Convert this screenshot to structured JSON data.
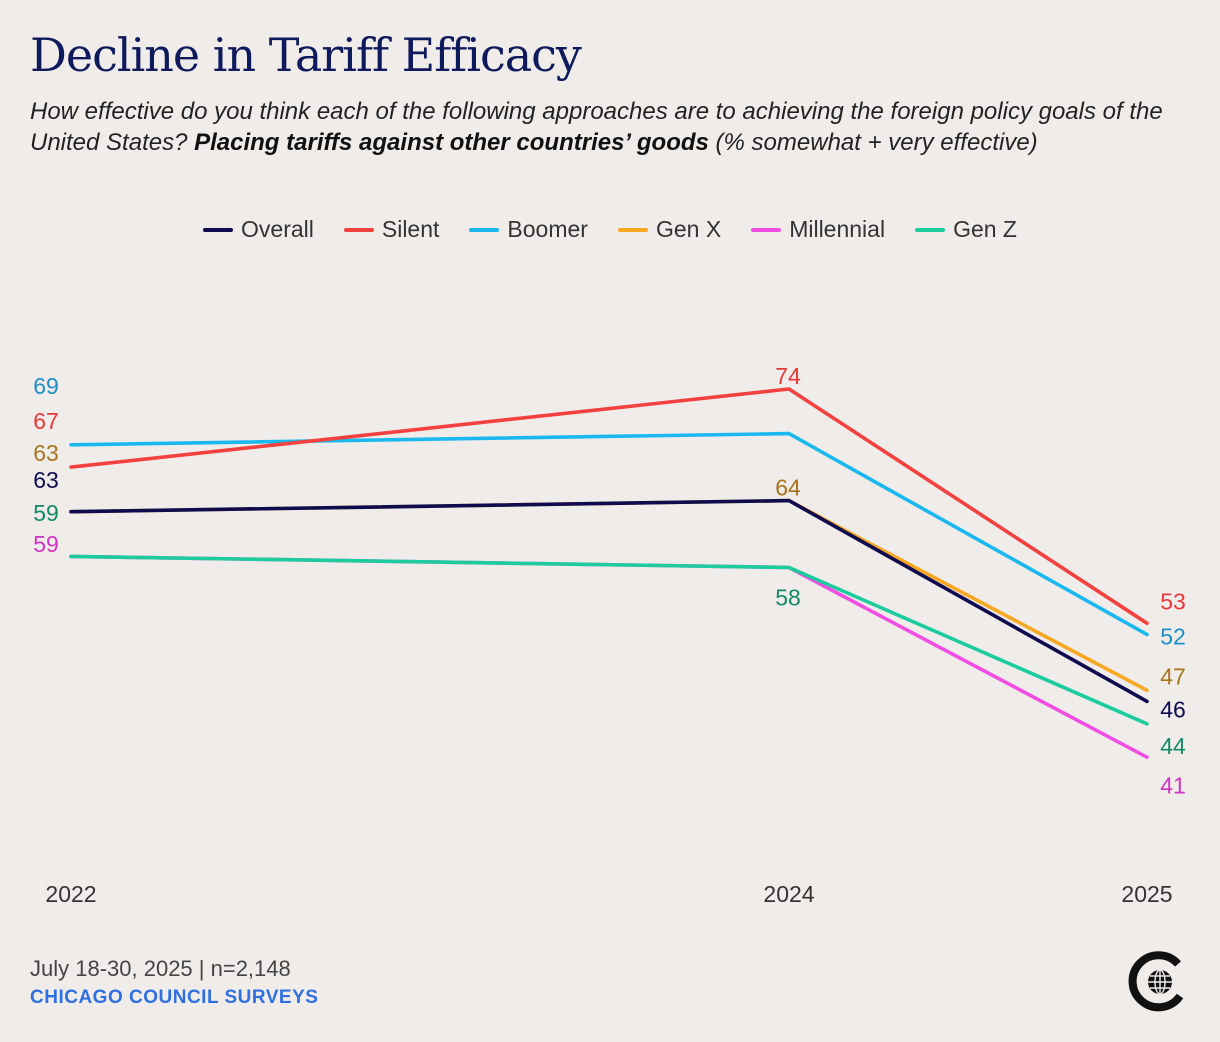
{
  "chart_data": {
    "type": "line",
    "title": "Decline in Tariff Efficacy",
    "subtitle_pre": "How effective do you think each of the following approaches are to achieving the foreign policy goals of the United States? ",
    "subtitle_bold": "Placing tariffs against other countries’ goods",
    "subtitle_post": " (% somewhat + very effective)",
    "x": [
      "2022",
      "2024",
      "2025"
    ],
    "xlabel": "",
    "ylabel": "",
    "ylim": [
      30,
      80
    ],
    "grid": false,
    "legend_position": "top-center",
    "series": [
      {
        "name": "Silent",
        "values": [
          67,
          74,
          53
        ],
        "color": "#f2413f",
        "label_color": "#e8383a"
      },
      {
        "name": "Boomer",
        "values": [
          69,
          70,
          52
        ],
        "color": "#1ab8ee",
        "label_color": "#1c8fc4"
      },
      {
        "name": "Gen X",
        "values": [
          63,
          64,
          47
        ],
        "color": "#f7a823",
        "label_color": "#a6751c"
      },
      {
        "name": "Overall",
        "values": [
          63,
          64,
          46
        ],
        "color": "#0e0c4f",
        "label_color": "#0e0c4f"
      },
      {
        "name": "Gen Z",
        "values": [
          59,
          58,
          44
        ],
        "color": "#1ccc9e",
        "label_color": "#128a68"
      },
      {
        "name": "Millennial",
        "values": [
          59,
          58,
          41
        ],
        "color": "#f04ee3",
        "label_color": "#d333c4"
      }
    ],
    "legend_order": [
      "Overall",
      "Silent",
      "Boomer",
      "Gen X",
      "Millennial",
      "Gen Z"
    ],
    "data_labels": [
      {
        "series": "Boomer",
        "point": 0,
        "text": "69"
      },
      {
        "series": "Silent",
        "point": 0,
        "text": "67"
      },
      {
        "series": "Gen X",
        "point": 0,
        "text": "63"
      },
      {
        "series": "Overall",
        "point": 0,
        "text": "63"
      },
      {
        "series": "Gen Z",
        "point": 0,
        "text": "59"
      },
      {
        "series": "Millennial",
        "point": 0,
        "text": "59"
      },
      {
        "series": "Silent",
        "point": 1,
        "text": "74"
      },
      {
        "series": "Gen X",
        "point": 1,
        "text": "64"
      },
      {
        "series": "Gen Z",
        "point": 1,
        "text": "58"
      },
      {
        "series": "Silent",
        "point": 2,
        "text": "53"
      },
      {
        "series": "Boomer",
        "point": 2,
        "text": "52"
      },
      {
        "series": "Gen X",
        "point": 2,
        "text": "47"
      },
      {
        "series": "Overall",
        "point": 2,
        "text": "46"
      },
      {
        "series": "Gen Z",
        "point": 2,
        "text": "44"
      },
      {
        "series": "Millennial",
        "point": 2,
        "text": "41"
      }
    ]
  },
  "footer": {
    "date_sample": "July 18-30, 2025 | n=2,148",
    "source": "CHICAGO COUNCIL SURVEYS"
  }
}
